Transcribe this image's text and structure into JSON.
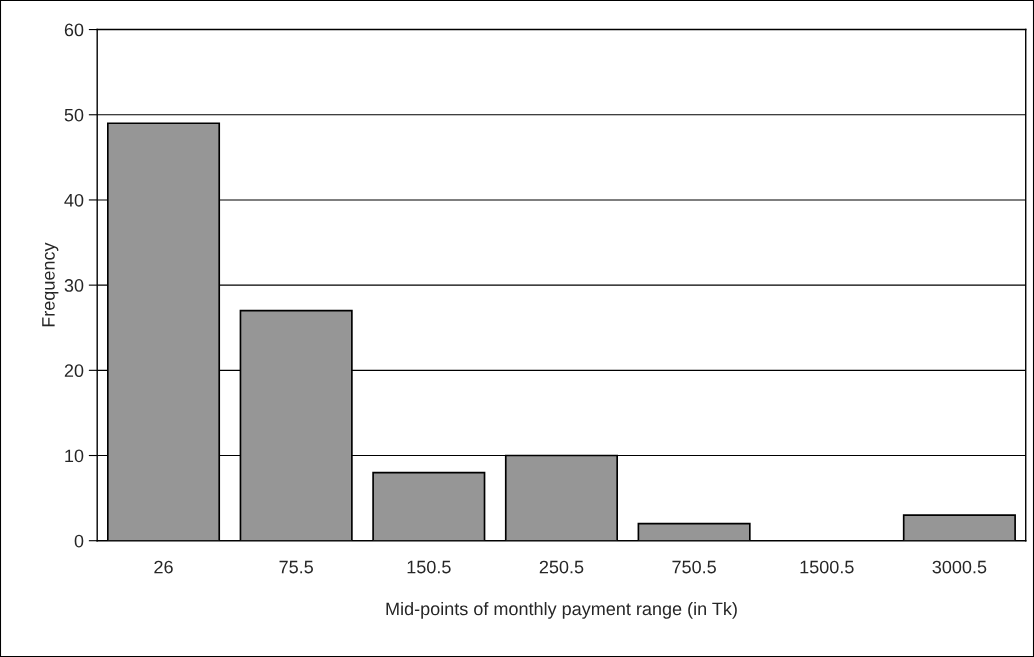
{
  "chart_data": {
    "type": "bar",
    "xlabel": "Mid-points of monthly payment range (in Tk)",
    "ylabel": "Frequency",
    "categories": [
      "26",
      "75.5",
      "150.5",
      "250.5",
      "750.5",
      "1500.5",
      "3000.5"
    ],
    "values": [
      49,
      27,
      8,
      10,
      2,
      0,
      3
    ],
    "color": "#969696",
    "ylim": [
      0,
      60
    ],
    "yticks": [
      0,
      10,
      20,
      30,
      40,
      50,
      60
    ],
    "grid": "y",
    "legend": false
  }
}
